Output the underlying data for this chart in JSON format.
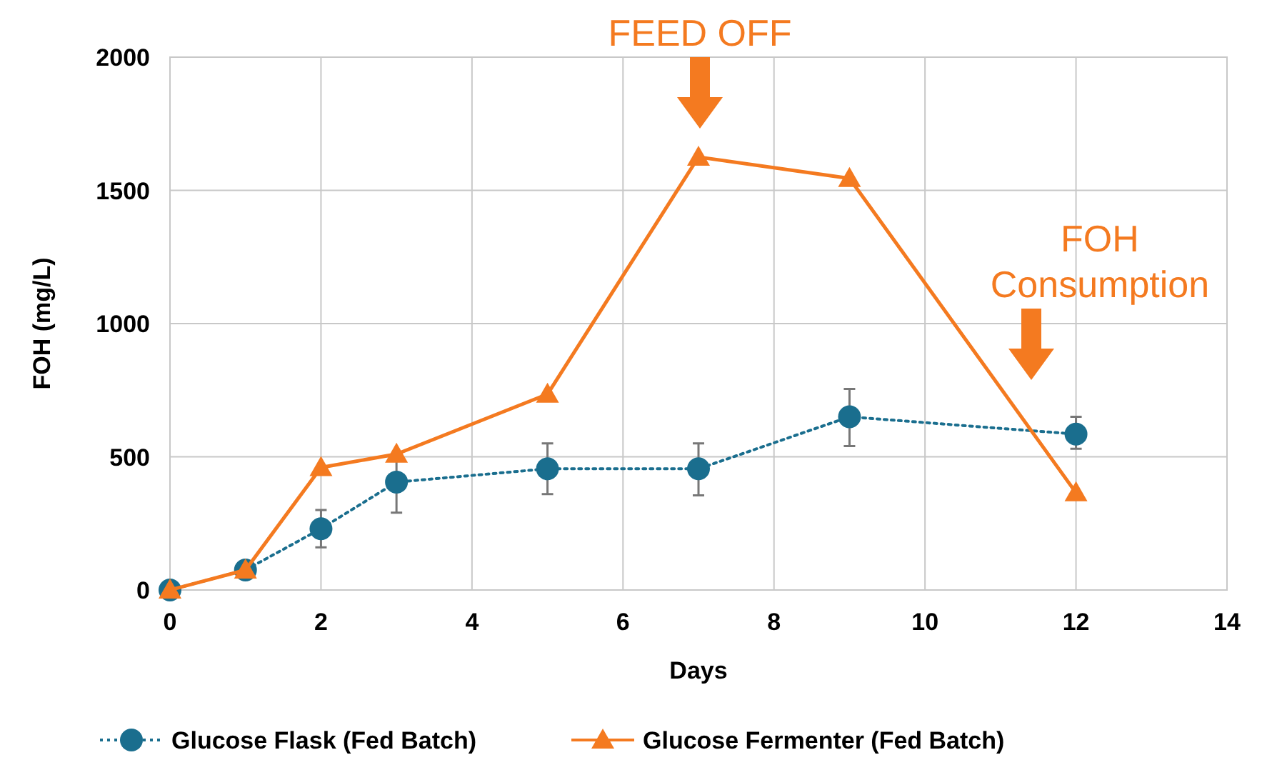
{
  "chart_data": {
    "type": "line",
    "xlabel": "Days",
    "ylabel": "FOH (mg/L)",
    "xlim": [
      0,
      14
    ],
    "xticks": [
      0,
      2,
      4,
      6,
      8,
      10,
      12,
      14
    ],
    "ylim": [
      0,
      2000
    ],
    "yticks": [
      0,
      500,
      1000,
      1500,
      2000
    ],
    "grid": true,
    "legend": "bottom",
    "series": [
      {
        "name": "Glucose Flask (Fed Batch)",
        "color": "#1a6e8e",
        "marker": "circle",
        "line_style": "dotted",
        "x": [
          0,
          1,
          2,
          3,
          5,
          7,
          9,
          12
        ],
        "values": [
          0,
          75,
          230,
          405,
          455,
          455,
          650,
          585
        ],
        "errors": [
          null,
          null,
          [
            160,
            300
          ],
          [
            290,
            510
          ],
          [
            360,
            550
          ],
          [
            355,
            550
          ],
          [
            540,
            755
          ],
          [
            530,
            650
          ]
        ]
      },
      {
        "name": "Glucose Fermenter (Fed Batch)",
        "color": "#f47a20",
        "marker": "triangle",
        "line_style": "solid",
        "x": [
          0,
          1,
          2,
          3,
          5,
          7,
          9,
          12
        ],
        "values": [
          0,
          75,
          460,
          510,
          735,
          1625,
          1545,
          365
        ]
      }
    ],
    "annotations": [
      "FEED OFF",
      "FOH Consumption"
    ]
  }
}
